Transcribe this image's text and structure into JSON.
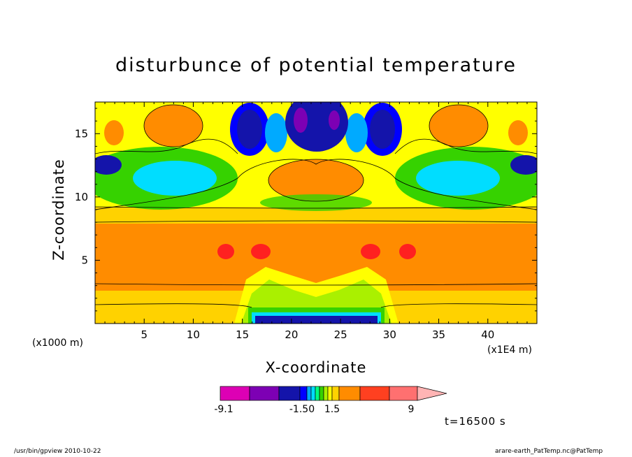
{
  "chart_data": {
    "type": "heatmap",
    "title": "disturbunce of potential temperature",
    "xlabel": "X-coordinate",
    "ylabel": "Z-coordinate",
    "x_scale_note": "(x1E4 m)",
    "y_scale_note": "(x1000 m)",
    "xlim": [
      0,
      45
    ],
    "ylim": [
      0,
      17.5
    ],
    "x_ticks": [
      "5",
      "10",
      "15",
      "20",
      "25",
      "30",
      "35",
      "40"
    ],
    "y_ticks": [
      "5",
      "10",
      "15"
    ],
    "colorbar": {
      "labels": [
        "-9.1",
        "-1.50",
        "1.5",
        "9"
      ],
      "colors": [
        "#dd00b4",
        "#7d00b4",
        "#1414aa",
        "#0000ff",
        "#00aaff",
        "#00ddff",
        "#00ff80",
        "#36d200",
        "#aaf000",
        "#ffff00",
        "#ffd200",
        "#ff8c00",
        "#ff4020",
        "#ff7070",
        "#ffb4b4"
      ],
      "extend": "max"
    },
    "time_note": "t=16500 s"
  },
  "footer": {
    "left": "/usr/bin/gpview   2010-10-22",
    "right": "arare-earth_PatTemp.nc@PatTemp"
  }
}
